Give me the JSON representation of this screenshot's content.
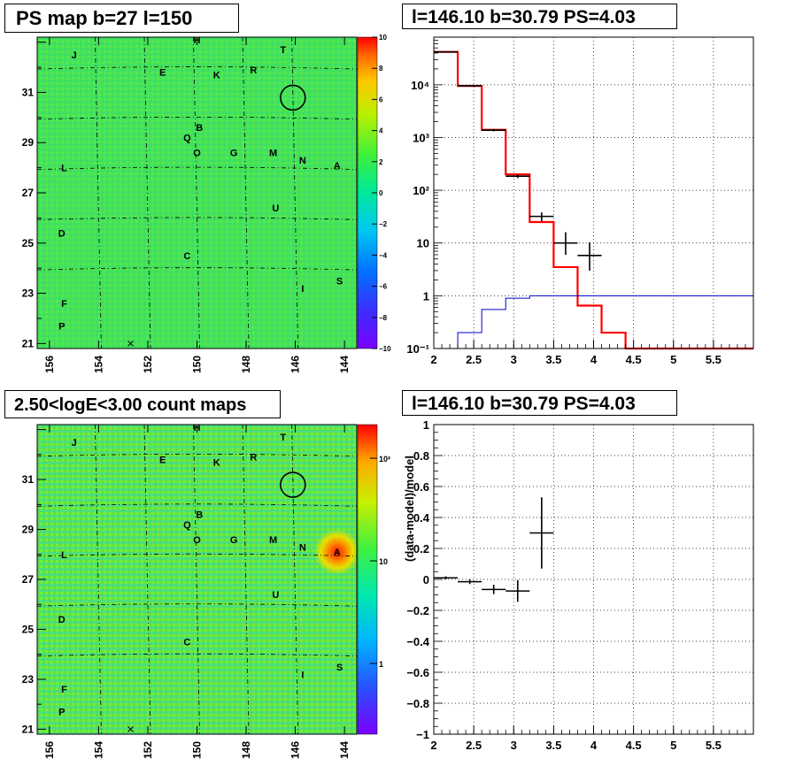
{
  "panels": {
    "ps_map_title": "PS map b=27 l=150",
    "spectrum_title": "l=146.10 b=30.79 PS=4.03",
    "count_map_title": "2.50<logE<3.00 count maps",
    "residual_title": "l=146.10 b=30.79 PS=4.03"
  },
  "colors": {
    "map_background": "#44e25a",
    "model_line": "#ff0000",
    "background_line": "#0000cc",
    "data_points": "#000000",
    "source_bright": "#ff2a00"
  },
  "chart_data": [
    {
      "type": "heatmap",
      "name": "ps-map",
      "x_ticks": [
        "156",
        "154",
        "152",
        "150",
        "148",
        "146",
        "144"
      ],
      "y_ticks": [
        "31",
        "29",
        "27",
        "25",
        "23",
        "21"
      ],
      "xlim": [
        156.5,
        143.5
      ],
      "ylim": [
        20.8,
        33.2
      ],
      "colorbar": {
        "scale": "linear",
        "range": [
          -10,
          10
        ],
        "tick_labels": [
          "10",
          "8",
          "6",
          "4",
          "2",
          "0",
          "−2",
          "−4",
          "−6",
          "−8",
          "−10"
        ]
      },
      "labels": [
        {
          "text": "H",
          "l": 150.0,
          "b": 33.1
        },
        {
          "text": "J",
          "l": 155.0,
          "b": 32.5
        },
        {
          "text": "T",
          "l": 146.5,
          "b": 32.7
        },
        {
          "text": "E",
          "l": 151.4,
          "b": 31.8
        },
        {
          "text": "K",
          "l": 149.2,
          "b": 31.7
        },
        {
          "text": "R",
          "l": 147.7,
          "b": 31.9
        },
        {
          "text": "B",
          "l": 149.9,
          "b": 29.6
        },
        {
          "text": "Q",
          "l": 150.4,
          "b": 29.2
        },
        {
          "text": "O",
          "l": 150.0,
          "b": 28.6
        },
        {
          "text": "G",
          "l": 148.5,
          "b": 28.6
        },
        {
          "text": "M",
          "l": 146.9,
          "b": 28.6
        },
        {
          "text": "N",
          "l": 145.7,
          "b": 28.3
        },
        {
          "text": "A",
          "l": 144.3,
          "b": 28.1
        },
        {
          "text": "L",
          "l": 155.4,
          "b": 28.0
        },
        {
          "text": "U",
          "l": 146.8,
          "b": 26.4
        },
        {
          "text": "D",
          "l": 155.5,
          "b": 25.4
        },
        {
          "text": "C",
          "l": 150.4,
          "b": 24.5
        },
        {
          "text": "I",
          "l": 145.7,
          "b": 23.2
        },
        {
          "text": "S",
          "l": 144.2,
          "b": 23.5
        },
        {
          "text": "F",
          "l": 155.4,
          "b": 22.6
        },
        {
          "text": "P",
          "l": 155.5,
          "b": 21.7
        }
      ],
      "circle": {
        "l": 146.1,
        "b": 30.79
      },
      "cross": {
        "l": 152.7,
        "b": 21.0
      }
    },
    {
      "type": "line",
      "name": "spectrum",
      "xlabel": "",
      "ylabel": "",
      "x_ticks": [
        "2",
        "2.5",
        "3",
        "3.5",
        "4",
        "4.5",
        "5",
        "5.5"
      ],
      "y_scale": "log",
      "y_ticks": [
        "10⁻¹",
        "1",
        "10",
        "10²",
        "10³",
        "10⁴"
      ],
      "xlim": [
        2.0,
        6.0
      ],
      "ylim": [
        0.1,
        80000
      ],
      "grid": true,
      "bin_edges": [
        2.0,
        2.3,
        2.6,
        2.9,
        3.2,
        3.5,
        3.8,
        4.1,
        4.4,
        4.7,
        6.0
      ],
      "series": [
        {
          "name": "",
          "color": "#ff0000",
          "values": [
            42000,
            9500,
            1400,
            200,
            25,
            3.5,
            0.65,
            0.2,
            0.1,
            0.1
          ]
        },
        {
          "name": "",
          "color": "#0000cc",
          "values": [
            0.1,
            0.2,
            0.55,
            0.9,
            1.0,
            1.0,
            1.0,
            1.0,
            1.0,
            1.0
          ]
        }
      ],
      "points": [
        {
          "x": 2.15,
          "xerr": 0.15,
          "y": 42000,
          "yerr": [
            400,
            400
          ]
        },
        {
          "x": 2.45,
          "xerr": 0.15,
          "y": 9600,
          "yerr": [
            200,
            200
          ]
        },
        {
          "x": 2.75,
          "xerr": 0.15,
          "y": 1380,
          "yerr": [
            70,
            70
          ]
        },
        {
          "x": 3.05,
          "xerr": 0.15,
          "y": 185,
          "yerr": [
            14,
            14
          ]
        },
        {
          "x": 3.35,
          "xerr": 0.15,
          "y": 32,
          "yerr": [
            6,
            6
          ]
        },
        {
          "x": 3.65,
          "xerr": 0.15,
          "y": 10,
          "yerr": [
            4,
            6
          ]
        },
        {
          "x": 3.95,
          "xerr": 0.15,
          "y": 5.8,
          "yerr": [
            2.8,
            4.5
          ]
        }
      ]
    },
    {
      "type": "heatmap",
      "name": "count-map",
      "x_ticks": [
        "156",
        "154",
        "152",
        "150",
        "148",
        "146",
        "144"
      ],
      "y_ticks": [
        "31",
        "29",
        "27",
        "25",
        "23",
        "21"
      ],
      "xlim": [
        156.5,
        143.5
      ],
      "ylim": [
        20.8,
        33.2
      ],
      "colorbar": {
        "scale": "log",
        "tick_labels": [
          "10²",
          "10",
          "1"
        ]
      },
      "bright_source": {
        "l": 144.3,
        "b": 28.1
      },
      "labels": [
        {
          "text": "H",
          "l": 150.0,
          "b": 33.1
        },
        {
          "text": "J",
          "l": 155.0,
          "b": 32.5
        },
        {
          "text": "T",
          "l": 146.5,
          "b": 32.7
        },
        {
          "text": "E",
          "l": 151.4,
          "b": 31.8
        },
        {
          "text": "K",
          "l": 149.2,
          "b": 31.7
        },
        {
          "text": "R",
          "l": 147.7,
          "b": 31.9
        },
        {
          "text": "B",
          "l": 149.9,
          "b": 29.6
        },
        {
          "text": "Q",
          "l": 150.4,
          "b": 29.2
        },
        {
          "text": "O",
          "l": 150.0,
          "b": 28.6
        },
        {
          "text": "G",
          "l": 148.5,
          "b": 28.6
        },
        {
          "text": "M",
          "l": 146.9,
          "b": 28.6
        },
        {
          "text": "N",
          "l": 145.7,
          "b": 28.3
        },
        {
          "text": "A",
          "l": 144.3,
          "b": 28.1
        },
        {
          "text": "L",
          "l": 155.4,
          "b": 28.0
        },
        {
          "text": "U",
          "l": 146.8,
          "b": 26.4
        },
        {
          "text": "D",
          "l": 155.5,
          "b": 25.4
        },
        {
          "text": "C",
          "l": 150.4,
          "b": 24.5
        },
        {
          "text": "I",
          "l": 145.7,
          "b": 23.2
        },
        {
          "text": "S",
          "l": 144.2,
          "b": 23.5
        },
        {
          "text": "F",
          "l": 155.4,
          "b": 22.6
        },
        {
          "text": "P",
          "l": 155.5,
          "b": 21.7
        }
      ],
      "circle": {
        "l": 146.1,
        "b": 30.79
      },
      "cross": {
        "l": 152.7,
        "b": 21.0
      }
    },
    {
      "type": "scatter",
      "name": "residual",
      "xlabel": "",
      "ylabel": "(data-model)/model",
      "x_ticks": [
        "2",
        "2.5",
        "3",
        "3.5",
        "4",
        "4.5",
        "5",
        "5.5"
      ],
      "y_ticks": [
        "1",
        "0.8",
        "0.6",
        "0.4",
        "0.2",
        "0",
        "−0.2",
        "−0.4",
        "−0.6",
        "−0.8",
        "−1"
      ],
      "xlim": [
        2.0,
        6.0
      ],
      "ylim": [
        -1.0,
        1.0
      ],
      "grid": true,
      "points": [
        {
          "x": 2.15,
          "xerr": 0.15,
          "y": 0.01,
          "yerr": 0.01
        },
        {
          "x": 2.45,
          "xerr": 0.15,
          "y": -0.015,
          "yerr": 0.015
        },
        {
          "x": 2.75,
          "xerr": 0.15,
          "y": -0.065,
          "yerr": 0.03
        },
        {
          "x": 3.05,
          "xerr": 0.15,
          "y": -0.075,
          "yerr": 0.07
        },
        {
          "x": 3.35,
          "xerr": 0.15,
          "y": 0.3,
          "yerr": 0.23
        }
      ]
    }
  ]
}
